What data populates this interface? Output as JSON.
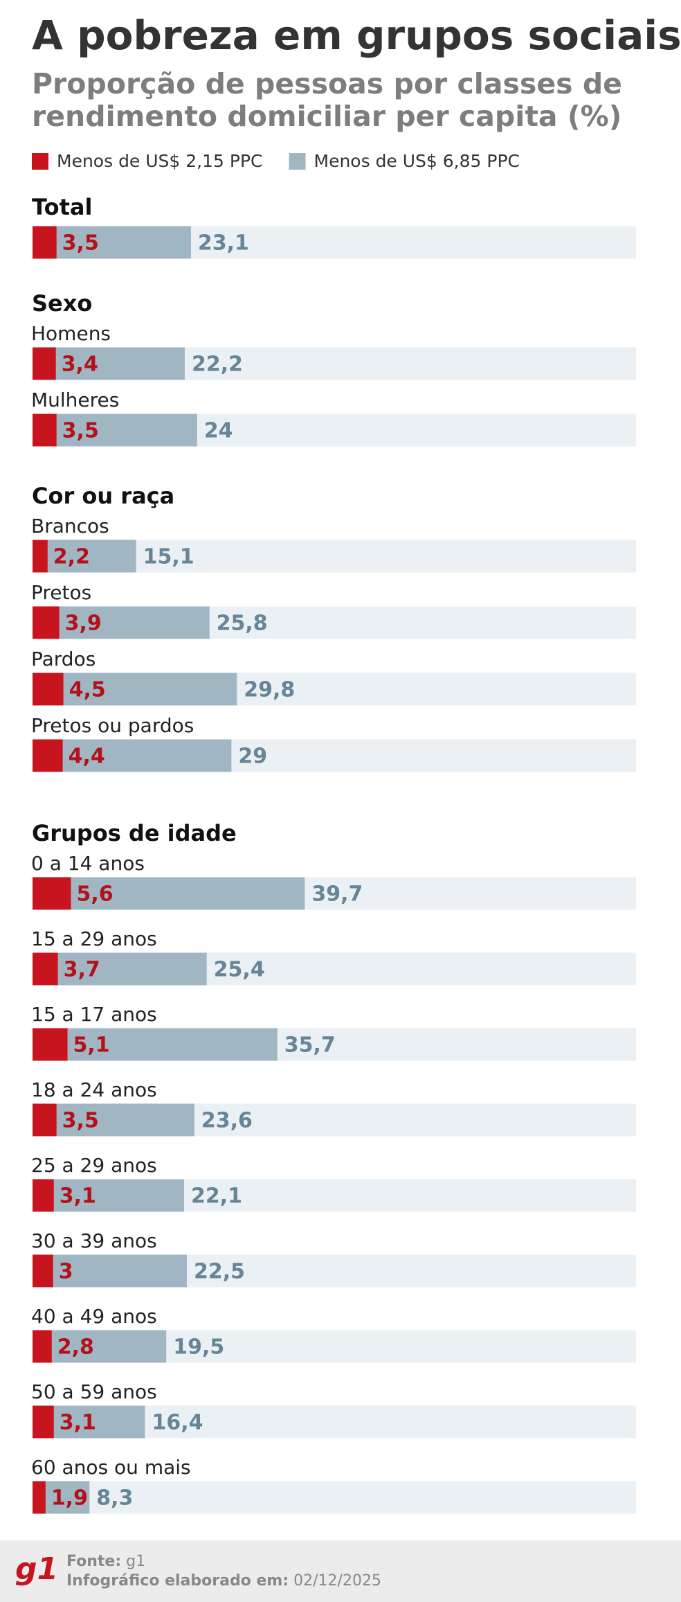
{
  "chart_data": {
    "type": "bar",
    "title": "A pobreza em grupos sociais",
    "subtitle": [
      "Proporção de pessoas por classes de",
      "rendimento domiciliar per capita (%)"
    ],
    "legend": [
      {
        "name": "Menos de US$ 2,15 PPC",
        "color": "#c8141e"
      },
      {
        "name": "Menos de US$ 6,85 PPC",
        "color": "#a1b6c3"
      }
    ],
    "xlim": [
      0,
      88
    ],
    "groups": [
      {
        "title": "Total",
        "categories": [
          null
        ],
        "series": [
          {
            "values": [
              3.5
            ],
            "value_labels": [
              "3,5"
            ]
          },
          {
            "values": [
              23.1
            ],
            "value_labels": [
              "23,1"
            ]
          }
        ]
      },
      {
        "title": "Sexo",
        "categories": [
          "Homens",
          "Mulheres"
        ],
        "series": [
          {
            "values": [
              3.4,
              3.5
            ],
            "value_labels": [
              "3,4",
              "3,5"
            ]
          },
          {
            "values": [
              22.2,
              24
            ],
            "value_labels": [
              "22,2",
              "24"
            ]
          }
        ]
      },
      {
        "title": "Cor ou raça",
        "categories": [
          "Brancos",
          "Pretos",
          "Pardos",
          "Pretos ou pardos"
        ],
        "series": [
          {
            "values": [
              2.2,
              3.9,
              4.5,
              4.4
            ],
            "value_labels": [
              "2,2",
              "3,9",
              "4,5",
              "4,4"
            ]
          },
          {
            "values": [
              15.1,
              25.8,
              29.8,
              29
            ],
            "value_labels": [
              "15,1",
              "25,8",
              "29,8",
              "29"
            ]
          }
        ]
      },
      {
        "title": "Grupos de idade",
        "categories": [
          "0 a 14 anos",
          "15 a 29 anos",
          "15 a 17 anos",
          "18 a 24 anos",
          "25 a 29 anos",
          "30 a 39 anos",
          "40 a 49 anos",
          "50 a 59 anos",
          "60 anos ou mais"
        ],
        "series": [
          {
            "values": [
              5.6,
              3.7,
              5.1,
              3.5,
              3.1,
              3,
              2.8,
              3.1,
              1.9
            ],
            "value_labels": [
              "5,6",
              "3,7",
              "5,1",
              "3,5",
              "3,1",
              "3",
              "2,8",
              "3,1",
              "1,9"
            ]
          },
          {
            "values": [
              39.7,
              25.4,
              35.7,
              23.6,
              22.1,
              22.5,
              19.5,
              16.4,
              8.3
            ],
            "value_labels": [
              "39,7",
              "25,4",
              "35,7",
              "23,6",
              "22,1",
              "22,5",
              "19,5",
              "16,4",
              "8,3"
            ]
          }
        ]
      }
    ]
  },
  "footer": {
    "logo": "g1",
    "source_label": "Fonte:",
    "source": "g1",
    "date_label": "Infográfico elaborado em:",
    "date": "02/12/2025"
  }
}
